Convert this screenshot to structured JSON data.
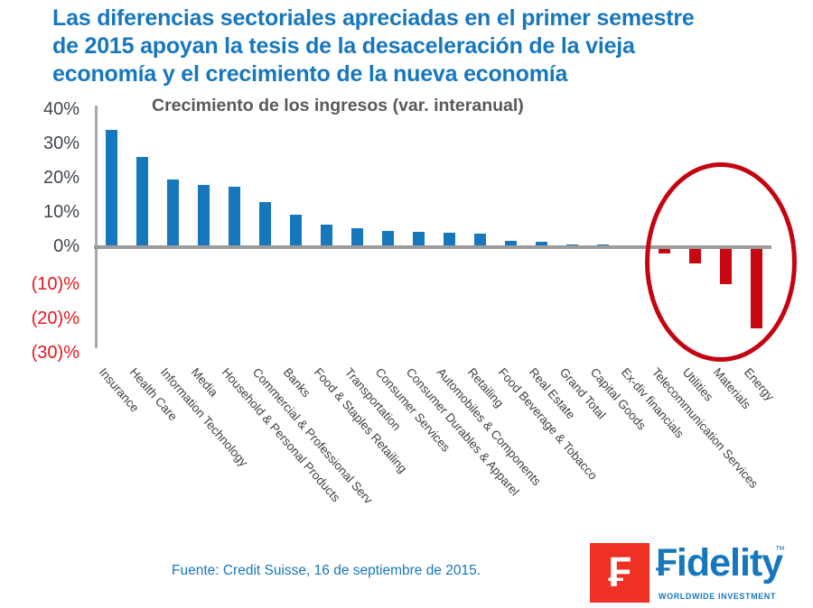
{
  "header": {
    "title": "Las diferencias sectoriales apreciadas en el primer semestre\nde 2015 apoyan la tesis de la desaceleración de la vieja\neconomía y el crecimiento de la nueva economía",
    "title_color": "#1777BD"
  },
  "chart_data": {
    "type": "bar",
    "title": "Crecimiento de los ingresos (var. interanual)",
    "categories": [
      "Insurance",
      "Health Care",
      "Information Technology",
      "Media",
      "Household & Personal Products",
      "Commercial & Professional Serv",
      "Banks",
      "Food & Staples Retailing",
      "Transportation",
      "Consumer Services",
      "Consumer Durables & Apparel",
      "Automobiles & Components",
      "Retailing",
      "Food Beverage & Tobacco",
      "Real Estate",
      "Grand Total",
      "Capital Goods",
      "Ex-div financials",
      "Telecommunication Services",
      "Utilities",
      "Materials",
      "Energy"
    ],
    "values": [
      34,
      26,
      19.5,
      18,
      17.5,
      13,
      9.2,
      6.3,
      5.3,
      4.5,
      4.3,
      4,
      3.6,
      1.5,
      1.2,
      0.6,
      0.5,
      0.1,
      -2,
      -5,
      -11,
      -24
    ],
    "unit": "%",
    "ylim": [
      -30,
      40
    ],
    "ytick_values": [
      40,
      30,
      20,
      10,
      0,
      -10,
      -20,
      -30
    ],
    "ytick_labels": [
      "40%",
      "30%",
      "20%",
      "10%",
      "0%",
      "(10)%",
      "(20)%",
      "(30)%"
    ],
    "grid": false,
    "legend": false,
    "positive_color": "#1777BD",
    "negative_color": "#C90711",
    "negative_tick_color": "#E4161E",
    "axis_color": "#9B9B9B",
    "annotation": {
      "shape": "ellipse",
      "color": "#C40511",
      "around": [
        "Telecommunication Services",
        "Utilities",
        "Materials",
        "Energy"
      ]
    }
  },
  "footer": {
    "source": "Fuente: Credit Suisse, 16 de septiembre de 2015.",
    "source_color": "#1777BD"
  },
  "logo": {
    "mark_letter": "₣",
    "wordmark": "₣idelity",
    "trademark": "™",
    "tagline": "WORLDWIDE INVESTMENT",
    "mark_color": "#EE3124",
    "text_color": "#1777BD"
  }
}
